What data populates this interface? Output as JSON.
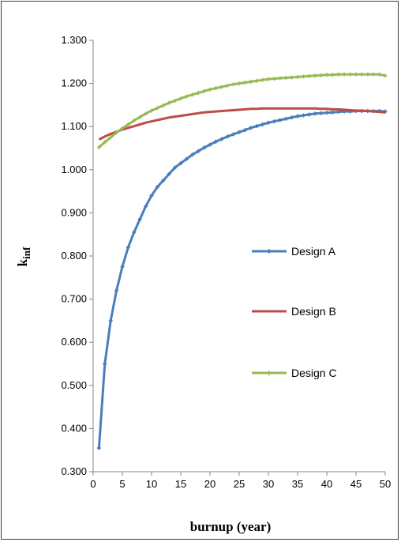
{
  "chart_data": {
    "type": "line",
    "xlabel": "burnup  (year)",
    "ylabel_main": "k",
    "ylabel_sub": "inf",
    "xlim": [
      0,
      50
    ],
    "ylim": [
      0.3,
      1.3
    ],
    "x_ticks": [
      "0",
      "5",
      "10",
      "15",
      "20",
      "25",
      "30",
      "35",
      "40",
      "45",
      "50"
    ],
    "y_ticks": [
      "0.300",
      "0.400",
      "0.500",
      "0.600",
      "0.700",
      "0.800",
      "0.900",
      "1.000",
      "1.100",
      "1.200",
      "1.300"
    ],
    "grid": false,
    "legend_position": "right",
    "series": [
      {
        "name": "Design A",
        "color": "#4a7ebb",
        "marker": "diamond",
        "x": [
          1,
          2,
          3,
          4,
          5,
          6,
          7,
          8,
          9,
          10,
          11,
          12,
          13,
          14,
          15,
          16,
          17,
          18,
          19,
          20,
          21,
          22,
          23,
          24,
          25,
          26,
          27,
          28,
          29,
          30,
          31,
          32,
          33,
          34,
          35,
          36,
          37,
          38,
          39,
          40,
          41,
          42,
          43,
          44,
          45,
          46,
          47,
          48,
          49,
          50
        ],
        "values": [
          0.355,
          0.55,
          0.65,
          0.72,
          0.775,
          0.82,
          0.855,
          0.885,
          0.915,
          0.94,
          0.96,
          0.975,
          0.99,
          1.005,
          1.015,
          1.025,
          1.035,
          1.043,
          1.051,
          1.058,
          1.065,
          1.071,
          1.077,
          1.082,
          1.087,
          1.092,
          1.097,
          1.101,
          1.105,
          1.109,
          1.112,
          1.115,
          1.118,
          1.121,
          1.124,
          1.126,
          1.128,
          1.13,
          1.131,
          1.132,
          1.133,
          1.134,
          1.135,
          1.135,
          1.136,
          1.136,
          1.136,
          1.136,
          1.136,
          1.135
        ]
      },
      {
        "name": "Design B",
        "color": "#be4b48",
        "marker": "none",
        "x": [
          1,
          2,
          3,
          4,
          5,
          6,
          7,
          8,
          9,
          10,
          11,
          12,
          13,
          14,
          15,
          16,
          17,
          18,
          19,
          20,
          21,
          22,
          23,
          24,
          25,
          26,
          27,
          28,
          29,
          30,
          31,
          32,
          33,
          34,
          35,
          36,
          37,
          38,
          39,
          40,
          41,
          42,
          43,
          44,
          45,
          46,
          47,
          48,
          49,
          50
        ],
        "values": [
          1.07,
          1.077,
          1.083,
          1.088,
          1.093,
          1.097,
          1.101,
          1.105,
          1.109,
          1.112,
          1.115,
          1.118,
          1.121,
          1.123,
          1.125,
          1.127,
          1.129,
          1.131,
          1.133,
          1.134,
          1.135,
          1.136,
          1.137,
          1.138,
          1.139,
          1.14,
          1.141,
          1.141,
          1.142,
          1.142,
          1.142,
          1.142,
          1.142,
          1.142,
          1.142,
          1.142,
          1.142,
          1.142,
          1.141,
          1.141,
          1.14,
          1.14,
          1.139,
          1.138,
          1.137,
          1.137,
          1.136,
          1.135,
          1.134,
          1.133
        ]
      },
      {
        "name": "Design C",
        "color": "#98b954",
        "marker": "cross",
        "x": [
          1,
          2,
          3,
          4,
          5,
          6,
          7,
          8,
          9,
          10,
          11,
          12,
          13,
          14,
          15,
          16,
          17,
          18,
          19,
          20,
          21,
          22,
          23,
          24,
          25,
          26,
          27,
          28,
          29,
          30,
          31,
          32,
          33,
          34,
          35,
          36,
          37,
          38,
          39,
          40,
          41,
          42,
          43,
          44,
          45,
          46,
          47,
          48,
          49,
          50
        ],
        "values": [
          1.052,
          1.064,
          1.075,
          1.086,
          1.096,
          1.105,
          1.114,
          1.122,
          1.13,
          1.137,
          1.143,
          1.149,
          1.155,
          1.16,
          1.165,
          1.17,
          1.174,
          1.178,
          1.182,
          1.186,
          1.189,
          1.192,
          1.195,
          1.198,
          1.2,
          1.202,
          1.204,
          1.206,
          1.208,
          1.21,
          1.211,
          1.212,
          1.213,
          1.214,
          1.215,
          1.216,
          1.217,
          1.218,
          1.219,
          1.22,
          1.22,
          1.221,
          1.221,
          1.221,
          1.221,
          1.221,
          1.221,
          1.221,
          1.221,
          1.218
        ]
      }
    ]
  }
}
